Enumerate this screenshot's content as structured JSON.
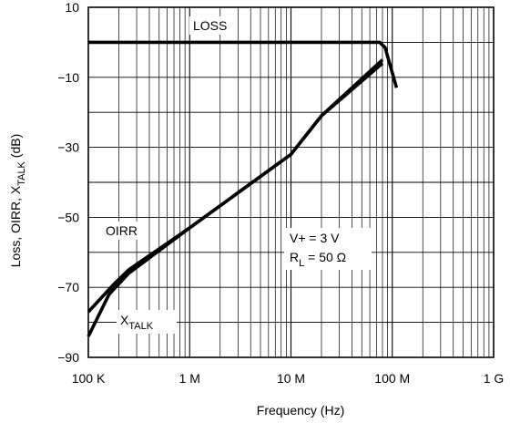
{
  "chart_data": {
    "type": "line",
    "title": "",
    "xlabel": "Frequency (Hz)",
    "ylabel_parts": [
      "Loss, OIRR, X",
      "TALK",
      " (dB)"
    ],
    "x_scale": "log",
    "xlim": [
      100000,
      1000000000
    ],
    "ylim": [
      -90,
      10
    ],
    "x_ticks": [
      {
        "value": 100000,
        "label": "100 K"
      },
      {
        "value": 1000000,
        "label": "1 M"
      },
      {
        "value": 10000000,
        "label": "10 M"
      },
      {
        "value": 100000000,
        "label": "100 M"
      },
      {
        "value": 1000000000,
        "label": "1 G"
      }
    ],
    "y_ticks": [
      {
        "value": 10,
        "label": "10"
      },
      {
        "value": -10,
        "label": "−10"
      },
      {
        "value": -30,
        "label": "−30"
      },
      {
        "value": -50,
        "label": "−50"
      },
      {
        "value": -70,
        "label": "−70"
      },
      {
        "value": -90,
        "label": "−90"
      }
    ],
    "y_gridlines": [
      10,
      0,
      -10,
      -20,
      -30,
      -40,
      -50,
      -60,
      -70,
      -80,
      -90
    ],
    "grid": true,
    "series": [
      {
        "name": "LOSS",
        "points": [
          [
            100000,
            0
          ],
          [
            20000000,
            0
          ],
          [
            75000000,
            0
          ],
          [
            85000000,
            -1.5
          ],
          [
            110000000,
            -13
          ]
        ]
      },
      {
        "name": "OIRR",
        "points": [
          [
            100000,
            -77
          ],
          [
            180000,
            -69
          ],
          [
            250000,
            -65
          ],
          [
            1000000,
            -53
          ],
          [
            10000000,
            -32
          ],
          [
            20000000,
            -21
          ],
          [
            80000000,
            -5
          ]
        ]
      },
      {
        "name": "X_TALK",
        "points": [
          [
            100000,
            -84
          ],
          [
            160000,
            -72
          ],
          [
            250000,
            -66
          ],
          [
            1000000,
            -53
          ],
          [
            10000000,
            -32
          ],
          [
            20000000,
            -21
          ],
          [
            80000000,
            -6
          ]
        ]
      }
    ],
    "annotations": {
      "loss_label": "LOSS",
      "oirr_label": "OIRR",
      "xtalk_main": "X",
      "xtalk_sub": "TALK",
      "cond_line1": "V+ = 3 V",
      "cond_line2_main": "R",
      "cond_line2_sub": "L",
      "cond_line2_rest": " = 50 Ω"
    }
  }
}
